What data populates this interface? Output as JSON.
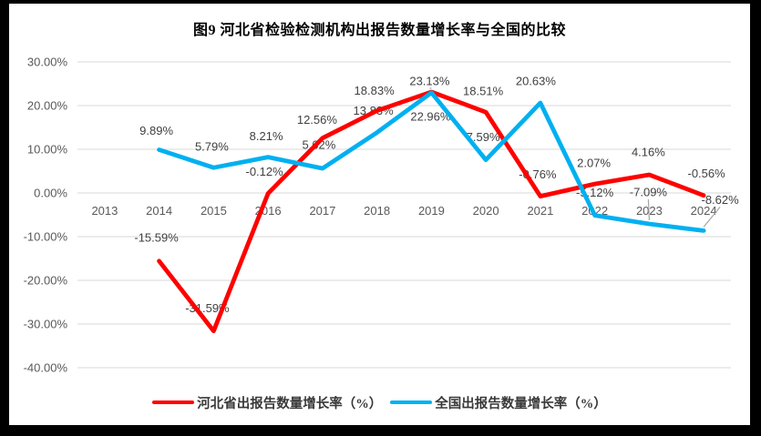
{
  "chart_data": {
    "type": "line",
    "title": "图9 河北省检验检测机构出报告数量增长率与全国的比较",
    "categories": [
      "2013",
      "2014",
      "2015",
      "2016",
      "2017",
      "2018",
      "2019",
      "2020",
      "2021",
      "2022",
      "2023",
      "2024"
    ],
    "y_axis": {
      "tick_labels": [
        "30.00%",
        "20.00%",
        "10.00%",
        "0.00%",
        "-10.00%",
        "-20.00%",
        "-30.00%",
        "-40.00%"
      ],
      "tick_values": [
        30,
        20,
        10,
        0,
        -10,
        -20,
        -30,
        -40
      ],
      "ylim": [
        -40,
        30
      ]
    },
    "grid": true,
    "legend_position": "bottom",
    "colors": {
      "hebei_line": "#FF0000",
      "national_line": "#00B0F0",
      "gridline": "#D9D9D9",
      "axis_text": "#595959",
      "data_label": "#404040",
      "leader_line": "#A6A6A6"
    },
    "series": [
      {
        "id": "hebei",
        "name": "河北省出报告数量增长率（%）",
        "color": "#FF0000",
        "values": [
          null,
          -15.59,
          -31.59,
          -0.12,
          12.56,
          18.83,
          23.13,
          18.51,
          -0.76,
          2.07,
          4.16,
          -0.56
        ],
        "data_labels": [
          "",
          "-15.59%",
          "-31.59%",
          "-0.12%",
          "12.56%",
          "18.83%",
          "23.13%",
          "18.51%",
          "-0.76%",
          "2.07%",
          "4.16%",
          "-0.56%"
        ],
        "label_offsets": [
          null,
          [
            -3,
            -26
          ],
          [
            -7,
            -25
          ],
          [
            -4,
            -24
          ],
          [
            -6,
            -20
          ],
          [
            -3,
            -22
          ],
          [
            -2,
            -12
          ],
          [
            -3,
            -23
          ],
          [
            -3,
            -24
          ],
          [
            -1,
            -23
          ],
          [
            -1,
            -25
          ],
          [
            3,
            -24
          ]
        ],
        "leader_indices": [
          6
        ]
      },
      {
        "id": "national",
        "name": "全国出报告数量增长率（%）",
        "color": "#00B0F0",
        "values": [
          null,
          9.89,
          5.79,
          8.21,
          5.62,
          13.83,
          22.96,
          7.59,
          20.63,
          -5.12,
          -7.09,
          -8.62
        ],
        "data_labels": [
          "",
          "9.89%",
          "5.79%",
          "8.21%",
          "5.62%",
          "13.83%",
          "22.96%",
          "7.59%",
          "20.63%",
          "-5.12%",
          "-7.09%",
          "-8.62%"
        ],
        "label_offsets": [
          null,
          [
            -3,
            -21
          ],
          [
            -2,
            -23
          ],
          [
            -2,
            -23
          ],
          [
            -4,
            -26
          ],
          [
            -4,
            -24
          ],
          [
            -1,
            26
          ],
          [
            -3,
            -25
          ],
          [
            -5,
            -24
          ],
          [
            0,
            -25
          ],
          [
            -1,
            -35
          ],
          [
            18,
            -34
          ]
        ],
        "leader_indices": [
          10,
          11
        ]
      }
    ]
  }
}
